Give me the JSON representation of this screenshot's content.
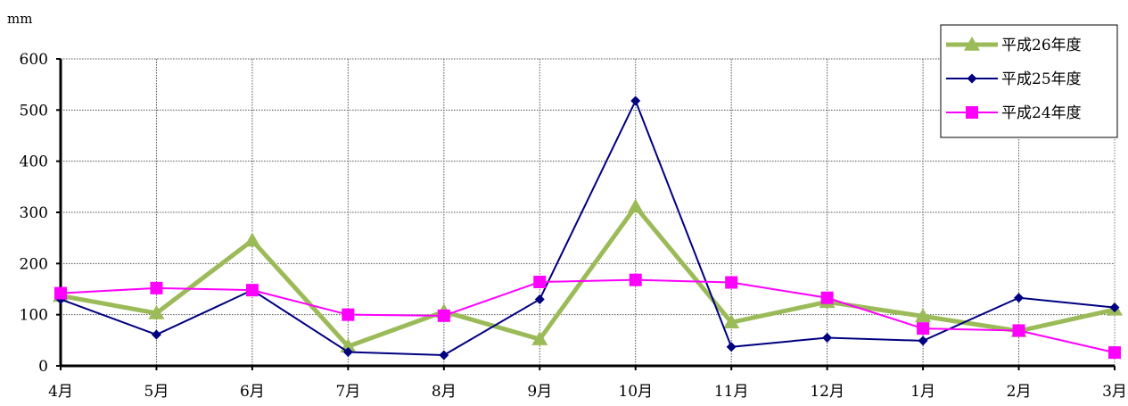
{
  "chart_data": {
    "type": "line",
    "unit_label": "mm",
    "categories": [
      "4月",
      "5月",
      "6月",
      "7月",
      "8月",
      "9月",
      "10月",
      "11月",
      "12月",
      "1月",
      "2月",
      "3月"
    ],
    "ylim": [
      0,
      600
    ],
    "yticks": [
      0,
      100,
      200,
      300,
      400,
      500,
      600
    ],
    "grid": true,
    "legend_position": "top-right",
    "series": [
      {
        "name": "平成26年度",
        "color": "#9bbb59",
        "marker": "triangle",
        "values": [
          137,
          103,
          245,
          38,
          106,
          52,
          311,
          85,
          125,
          97,
          68,
          110
        ]
      },
      {
        "name": "平成25年度",
        "color": "#000080",
        "marker": "diamond",
        "values": [
          130,
          61,
          148,
          27,
          21,
          130,
          518,
          37,
          55,
          49,
          133,
          114
        ]
      },
      {
        "name": "平成24年度",
        "color": "#ff00ff",
        "marker": "square",
        "values": [
          142,
          152,
          148,
          100,
          98,
          164,
          168,
          163,
          133,
          73,
          69,
          26
        ]
      }
    ]
  }
}
